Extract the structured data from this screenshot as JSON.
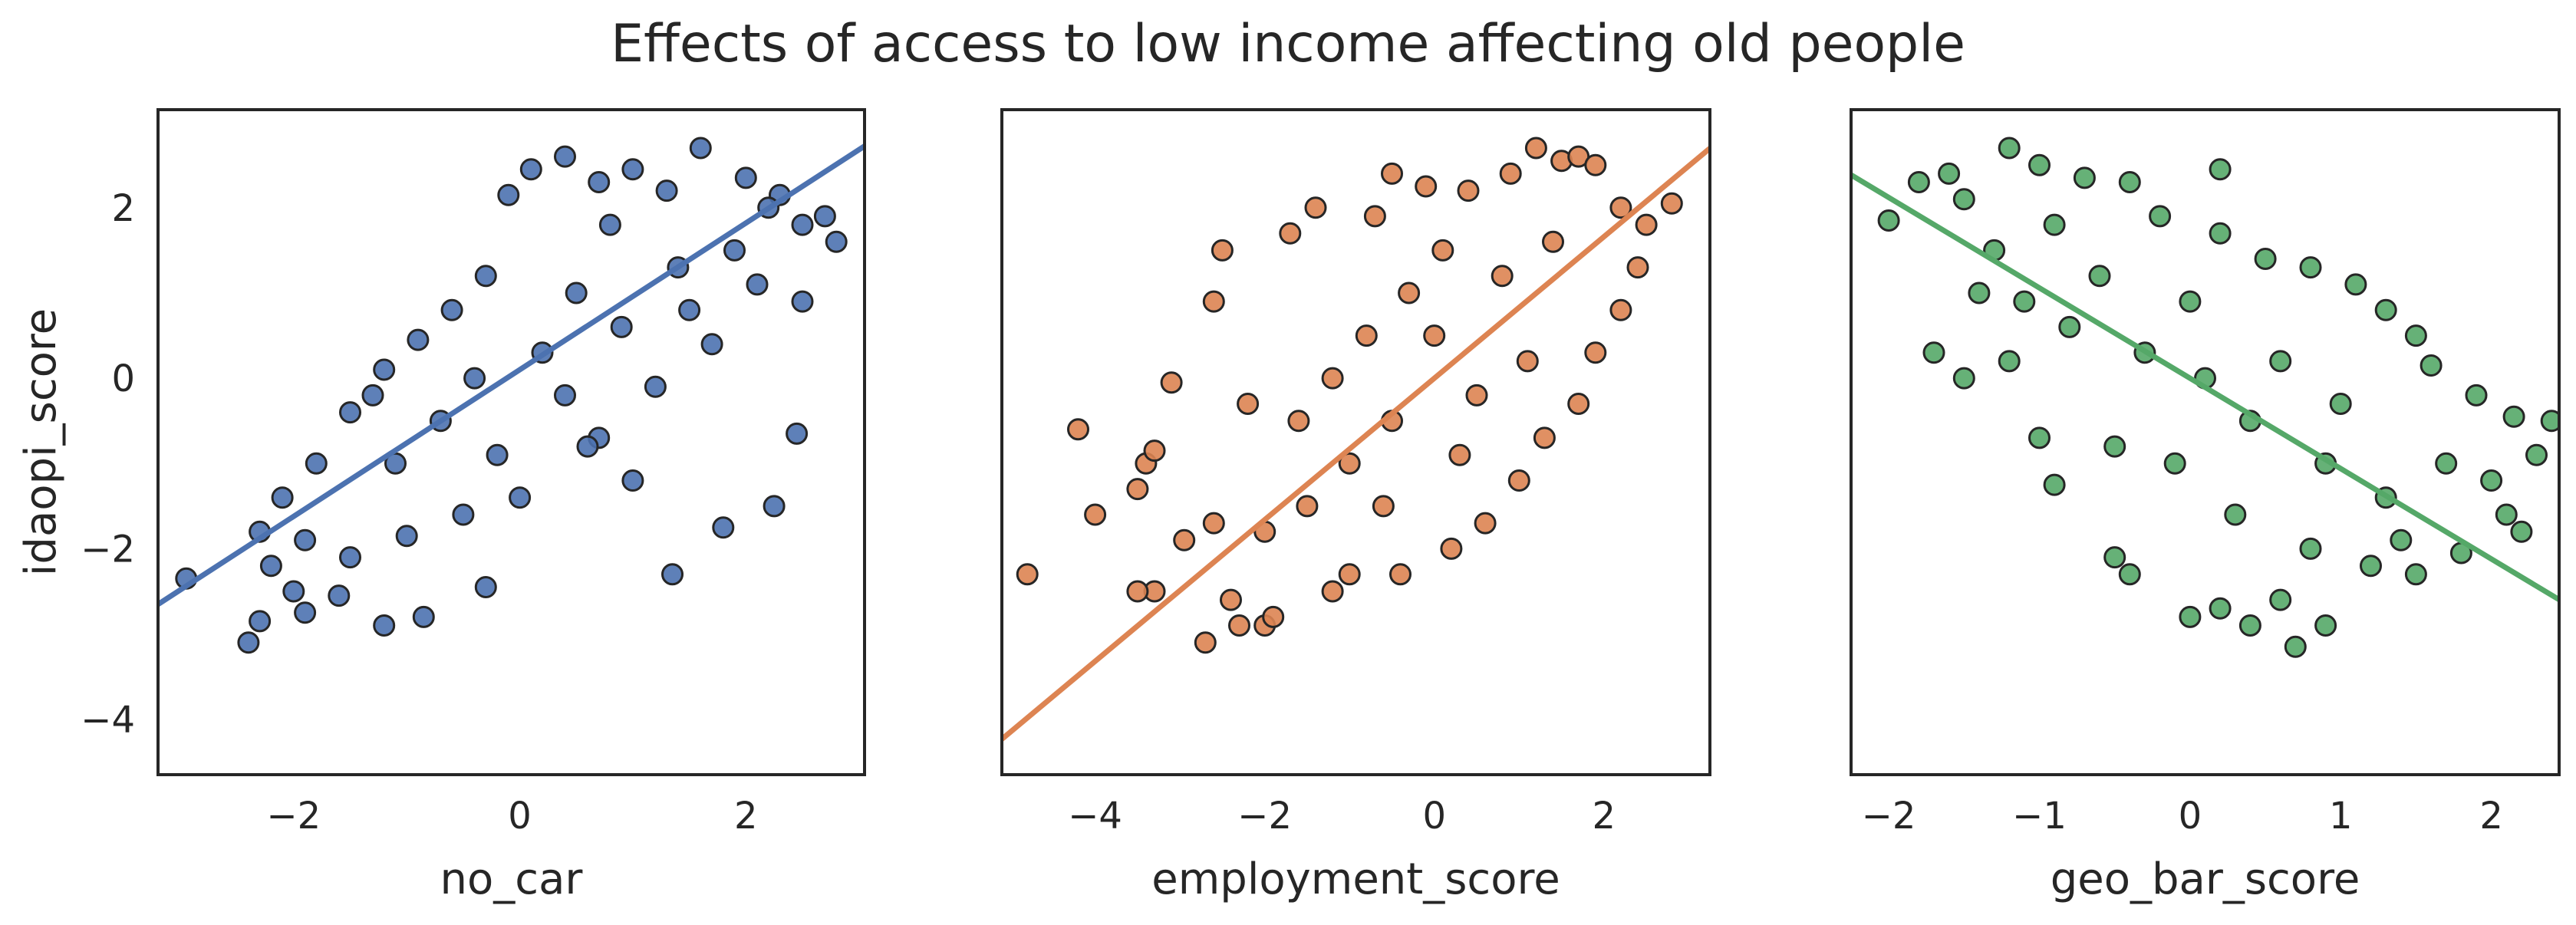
{
  "figure": {
    "title": "Effects of access to low income affecting old people"
  },
  "chart_data": [
    {
      "type": "scatter",
      "title": "",
      "xlabel": "no_car",
      "ylabel": "idaopi_score",
      "xlim": [
        -3.2,
        3.05
      ],
      "ylim": [
        -4.65,
        3.15
      ],
      "xticks": [
        -2,
        0,
        2
      ],
      "yticks": [
        -4,
        -2,
        0,
        2
      ],
      "color": "#4C72B0",
      "regression": {
        "slope": 0.86,
        "intercept": 0.1
      },
      "series": [
        {
          "points": [
            [
              -2.95,
              -2.35
            ],
            [
              -2.4,
              -3.1
            ],
            [
              -2.3,
              -2.85
            ],
            [
              -1.9,
              -2.75
            ],
            [
              -1.2,
              -2.9
            ],
            [
              -0.85,
              -2.8
            ],
            [
              -0.3,
              -2.45
            ],
            [
              -2.0,
              -2.5
            ],
            [
              -1.6,
              -2.55
            ],
            [
              -2.3,
              -1.8
            ],
            [
              -2.1,
              -1.4
            ],
            [
              -1.8,
              -1.0
            ],
            [
              -1.5,
              -0.4
            ],
            [
              -1.2,
              0.1
            ],
            [
              -0.9,
              0.45
            ],
            [
              -0.6,
              0.8
            ],
            [
              -0.3,
              1.2
            ],
            [
              -0.1,
              2.15
            ],
            [
              0.1,
              2.45
            ],
            [
              0.4,
              2.6
            ],
            [
              0.7,
              2.3
            ],
            [
              1.0,
              2.45
            ],
            [
              1.3,
              2.2
            ],
            [
              1.6,
              2.7
            ],
            [
              2.0,
              2.35
            ],
            [
              2.3,
              2.15
            ],
            [
              2.5,
              1.8
            ],
            [
              2.7,
              1.9
            ],
            [
              2.8,
              1.6
            ],
            [
              2.5,
              0.9
            ],
            [
              2.45,
              -0.65
            ],
            [
              2.25,
              -1.5
            ],
            [
              1.8,
              -1.75
            ],
            [
              1.35,
              -2.3
            ],
            [
              1.0,
              -1.2
            ],
            [
              0.7,
              -0.7
            ],
            [
              0.4,
              -0.2
            ],
            [
              0.0,
              -1.4
            ],
            [
              -0.5,
              -1.6
            ],
            [
              -1.0,
              -1.85
            ],
            [
              -1.5,
              -2.1
            ],
            [
              -0.7,
              -0.5
            ],
            [
              0.2,
              0.3
            ],
            [
              0.9,
              0.6
            ],
            [
              1.4,
              1.3
            ],
            [
              1.9,
              1.5
            ],
            [
              -1.1,
              -1.0
            ],
            [
              0.5,
              1.0
            ],
            [
              1.2,
              -0.1
            ],
            [
              1.7,
              0.4
            ],
            [
              -1.9,
              -1.9
            ],
            [
              -0.4,
              0.0
            ],
            [
              0.8,
              1.8
            ],
            [
              2.1,
              1.1
            ],
            [
              -0.2,
              -0.9
            ],
            [
              -1.3,
              -0.2
            ],
            [
              0.6,
              -0.8
            ],
            [
              1.5,
              0.8
            ],
            [
              -2.2,
              -2.2
            ],
            [
              2.2,
              2.0
            ]
          ]
        }
      ]
    },
    {
      "type": "scatter",
      "title": "",
      "xlabel": "employment_score",
      "ylabel": "",
      "xlim": [
        -5.1,
        3.25
      ],
      "ylim": [
        -4.65,
        3.15
      ],
      "xticks": [
        -4,
        -2,
        0,
        2
      ],
      "yticks": [],
      "color": "#DD8452",
      "regression": {
        "slope": 0.83,
        "intercept": 0.0
      },
      "series": [
        {
          "points": [
            [
              -4.8,
              -2.3
            ],
            [
              -4.2,
              -0.6
            ],
            [
              -4.0,
              -1.6
            ],
            [
              -3.5,
              -1.3
            ],
            [
              -3.4,
              -1.0
            ],
            [
              -3.3,
              -0.85
            ],
            [
              -3.3,
              -2.5
            ],
            [
              -3.1,
              -0.05
            ],
            [
              -2.95,
              -1.9
            ],
            [
              -2.7,
              -3.1
            ],
            [
              -2.6,
              0.9
            ],
            [
              -2.5,
              1.5
            ],
            [
              -2.4,
              -2.6
            ],
            [
              -2.3,
              -2.9
            ],
            [
              -2.2,
              -0.3
            ],
            [
              -2.0,
              -2.9
            ],
            [
              -1.9,
              -2.8
            ],
            [
              -1.7,
              1.7
            ],
            [
              -1.4,
              2.0
            ],
            [
              -1.2,
              -2.5
            ],
            [
              -1.0,
              -2.3
            ],
            [
              -0.7,
              1.9
            ],
            [
              -0.5,
              2.4
            ],
            [
              -0.4,
              -2.3
            ],
            [
              -0.1,
              2.25
            ],
            [
              0.2,
              -2.0
            ],
            [
              0.4,
              2.2
            ],
            [
              0.6,
              -1.7
            ],
            [
              0.9,
              2.4
            ],
            [
              1.2,
              2.7
            ],
            [
              1.5,
              2.55
            ],
            [
              1.7,
              2.6
            ],
            [
              1.9,
              2.5
            ],
            [
              2.2,
              2.0
            ],
            [
              2.5,
              1.8
            ],
            [
              2.8,
              2.05
            ],
            [
              2.2,
              0.8
            ],
            [
              1.9,
              0.3
            ],
            [
              1.7,
              -0.3
            ],
            [
              1.3,
              -0.7
            ],
            [
              1.0,
              -1.2
            ],
            [
              0.5,
              -0.2
            ],
            [
              0.0,
              0.5
            ],
            [
              -0.5,
              -0.5
            ],
            [
              -1.0,
              -1.0
            ],
            [
              -1.5,
              -1.5
            ],
            [
              -0.3,
              1.0
            ],
            [
              0.8,
              1.2
            ],
            [
              -1.2,
              0.0
            ],
            [
              1.4,
              1.6
            ],
            [
              -0.8,
              0.5
            ],
            [
              0.3,
              -0.9
            ],
            [
              -2.0,
              -1.8
            ],
            [
              1.1,
              0.2
            ],
            [
              -1.6,
              -0.5
            ],
            [
              2.4,
              1.3
            ],
            [
              0.1,
              1.5
            ],
            [
              -0.6,
              -1.5
            ],
            [
              -2.6,
              -1.7
            ],
            [
              -3.5,
              -2.5
            ]
          ]
        }
      ]
    },
    {
      "type": "scatter",
      "title": "",
      "xlabel": "geo_bar_score",
      "ylabel": "",
      "xlim": [
        -2.25,
        2.45
      ],
      "ylim": [
        -4.65,
        3.15
      ],
      "xticks": [
        -2,
        -1,
        0,
        1,
        2
      ],
      "yticks": [],
      "color": "#55A868",
      "regression": {
        "slope": -1.06,
        "intercept": 0.0
      },
      "series": [
        {
          "points": [
            [
              -2.0,
              1.85
            ],
            [
              -1.8,
              2.3
            ],
            [
              -1.6,
              2.4
            ],
            [
              -1.7,
              0.3
            ],
            [
              -1.5,
              2.1
            ],
            [
              -1.2,
              2.7
            ],
            [
              -1.0,
              2.5
            ],
            [
              -0.7,
              2.35
            ],
            [
              -0.4,
              2.3
            ],
            [
              0.2,
              2.45
            ],
            [
              -1.3,
              1.5
            ],
            [
              -1.1,
              0.9
            ],
            [
              -1.0,
              -0.7
            ],
            [
              -0.9,
              -1.25
            ],
            [
              -0.5,
              -2.1
            ],
            [
              -0.4,
              -2.3
            ],
            [
              0.0,
              -2.8
            ],
            [
              0.2,
              -2.7
            ],
            [
              0.4,
              -2.9
            ],
            [
              0.6,
              -2.6
            ],
            [
              0.7,
              -3.15
            ],
            [
              0.9,
              -2.9
            ],
            [
              1.2,
              -2.2
            ],
            [
              1.5,
              -2.3
            ],
            [
              1.8,
              -2.05
            ],
            [
              2.1,
              -1.6
            ],
            [
              2.2,
              -1.8
            ],
            [
              2.3,
              -0.9
            ],
            [
              2.4,
              -0.5
            ],
            [
              2.15,
              -0.45
            ],
            [
              1.9,
              -0.2
            ],
            [
              1.6,
              0.15
            ],
            [
              1.5,
              0.5
            ],
            [
              1.3,
              0.8
            ],
            [
              1.1,
              1.1
            ],
            [
              0.8,
              1.3
            ],
            [
              0.5,
              1.4
            ],
            [
              0.2,
              1.7
            ],
            [
              -0.2,
              1.9
            ],
            [
              -0.6,
              1.2
            ],
            [
              -0.3,
              0.3
            ],
            [
              0.1,
              0.0
            ],
            [
              0.4,
              -0.5
            ],
            [
              0.9,
              -1.0
            ],
            [
              1.3,
              -1.4
            ],
            [
              -1.4,
              1.0
            ],
            [
              -0.8,
              0.6
            ],
            [
              0.6,
              0.2
            ],
            [
              1.0,
              -0.3
            ],
            [
              -0.1,
              -1.0
            ],
            [
              0.3,
              -1.6
            ],
            [
              1.7,
              -1.0
            ],
            [
              -1.5,
              0.0
            ],
            [
              -0.5,
              -0.8
            ],
            [
              0.8,
              -2.0
            ],
            [
              1.4,
              -1.9
            ],
            [
              -0.9,
              1.8
            ],
            [
              0.0,
              0.9
            ],
            [
              2.0,
              -1.2
            ],
            [
              -1.2,
              0.2
            ]
          ]
        }
      ]
    }
  ]
}
